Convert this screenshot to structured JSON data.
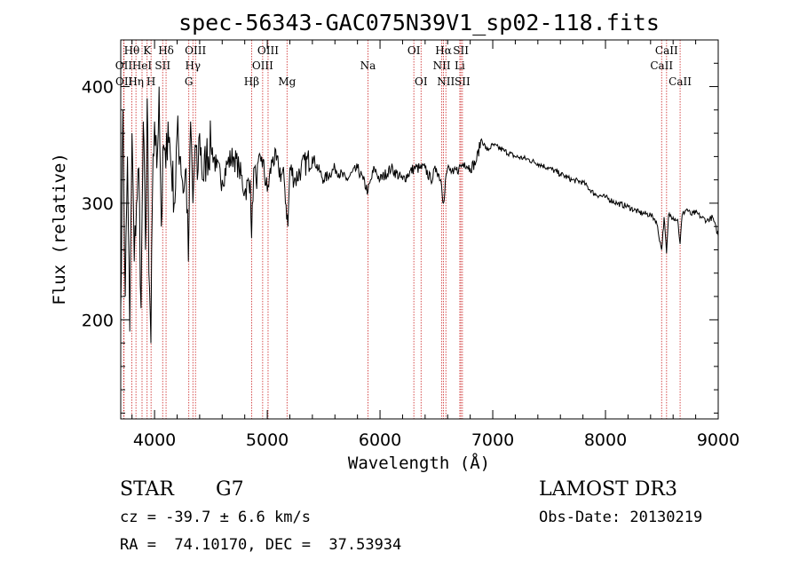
{
  "chart_data": {
    "type": "line",
    "title": "spec-56343-GAC075N39V1_sp02-118.fits",
    "xlabel": "Wavelength (Å)",
    "ylabel": "Flux (relative)",
    "xlim": [
      3700,
      9000
    ],
    "ylim": [
      115,
      440
    ],
    "xticks": [
      4000,
      5000,
      6000,
      7000,
      8000,
      9000
    ],
    "yticks": [
      200,
      300,
      400
    ],
    "series": [
      {
        "name": "flux",
        "x": [
          3700,
          3720,
          3740,
          3760,
          3780,
          3800,
          3820,
          3840,
          3860,
          3880,
          3900,
          3920,
          3935,
          3950,
          3968,
          3980,
          4000,
          4020,
          4040,
          4060,
          4080,
          4100,
          4120,
          4150,
          4180,
          4200,
          4230,
          4260,
          4280,
          4300,
          4320,
          4340,
          4360,
          4380,
          4400,
          4430,
          4460,
          4500,
          4550,
          4600,
          4650,
          4700,
          4750,
          4800,
          4850,
          4861,
          4880,
          4900,
          4950,
          5000,
          5050,
          5100,
          5150,
          5183,
          5200,
          5250,
          5300,
          5400,
          5500,
          5600,
          5700,
          5800,
          5850,
          5893,
          5950,
          6000,
          6100,
          6200,
          6300,
          6350,
          6400,
          6450,
          6500,
          6540,
          6563,
          6580,
          6600,
          6650,
          6700,
          6750,
          6800,
          6850,
          6900,
          6950,
          7000,
          7100,
          7200,
          7300,
          7400,
          7500,
          7600,
          7700,
          7800,
          7900,
          8000,
          8100,
          8200,
          8300,
          8400,
          8450,
          8498,
          8520,
          8542,
          8560,
          8600,
          8640,
          8662,
          8680,
          8720,
          8760,
          8800,
          8850,
          8900,
          8950,
          9000
        ],
        "y": [
          210,
          380,
          220,
          340,
          190,
          360,
          250,
          300,
          330,
          210,
          370,
          260,
          390,
          240,
          180,
          300,
          370,
          330,
          400,
          280,
          350,
          330,
          370,
          330,
          300,
          360,
          340,
          310,
          330,
          250,
          370,
          300,
          350,
          320,
          360,
          320,
          340,
          350,
          330,
          320,
          335,
          340,
          330,
          310,
          320,
          270,
          330,
          320,
          340,
          310,
          340,
          330,
          320,
          280,
          330,
          320,
          330,
          340,
          320,
          330,
          320,
          330,
          320,
          310,
          330,
          320,
          330,
          320,
          330,
          330,
          330,
          320,
          330,
          320,
          300,
          320,
          330,
          325,
          330,
          335,
          330,
          335,
          355,
          345,
          350,
          345,
          340,
          338,
          334,
          330,
          325,
          320,
          318,
          308,
          305,
          300,
          297,
          292,
          290,
          285,
          260,
          288,
          257,
          290,
          288,
          286,
          265,
          290,
          295,
          290,
          292,
          288,
          285,
          288,
          272
        ]
      }
    ],
    "spectral_lines": [
      {
        "label": "Hθ",
        "wavelength": 3798,
        "row": 1
      },
      {
        "label": "OII",
        "wavelength": 3727,
        "row": 2
      },
      {
        "label": "OII",
        "wavelength": 3729,
        "row": 3
      },
      {
        "label": "Hη",
        "wavelength": 3835,
        "row": 3
      },
      {
        "label": "K",
        "wavelength": 3934,
        "row": 1
      },
      {
        "label": "HeI",
        "wavelength": 3889,
        "row": 2
      },
      {
        "label": "H",
        "wavelength": 3969,
        "row": 3
      },
      {
        "label": "Hδ",
        "wavelength": 4102,
        "row": 1
      },
      {
        "label": "SII",
        "wavelength": 4072,
        "row": 2
      },
      {
        "label": "OIII",
        "wavelength": 4363,
        "row": 1
      },
      {
        "label": "Hγ",
        "wavelength": 4340,
        "row": 2
      },
      {
        "label": "G",
        "wavelength": 4304,
        "row": 3
      },
      {
        "label": "OIII",
        "wavelength": 5007,
        "row": 1
      },
      {
        "label": "OIII",
        "wavelength": 4959,
        "row": 2
      },
      {
        "label": "Hβ",
        "wavelength": 4861,
        "row": 3
      },
      {
        "label": "Mg",
        "wavelength": 5175,
        "row": 3
      },
      {
        "label": "Na",
        "wavelength": 5893,
        "row": 2
      },
      {
        "label": "OI",
        "wavelength": 6300,
        "row": 1
      },
      {
        "label": "OI",
        "wavelength": 6364,
        "row": 3
      },
      {
        "label": "Hα",
        "wavelength": 6563,
        "row": 1
      },
      {
        "label": "NII",
        "wavelength": 6548,
        "row": 2
      },
      {
        "label": "NII",
        "wavelength": 6584,
        "row": 3
      },
      {
        "label": "SII",
        "wavelength": 6717,
        "row": 1
      },
      {
        "label": "Li",
        "wavelength": 6708,
        "row": 2
      },
      {
        "label": "SII",
        "wavelength": 6731,
        "row": 3
      },
      {
        "label": "CaII",
        "wavelength": 8542,
        "row": 1
      },
      {
        "label": "CaII",
        "wavelength": 8498,
        "row": 2
      },
      {
        "label": "CaII",
        "wavelength": 8662,
        "row": 3
      }
    ]
  },
  "info": {
    "class": "STAR",
    "subclass": "G7",
    "survey": "LAMOST DR3",
    "cz": "cz = -39.7 ± 6.6 km/s",
    "obs_date": "Obs-Date: 20130219",
    "coords": "RA =  74.10170, DEC =  37.53934"
  },
  "colors": {
    "line_marker": "#cc2222",
    "spectrum": "#000000"
  }
}
